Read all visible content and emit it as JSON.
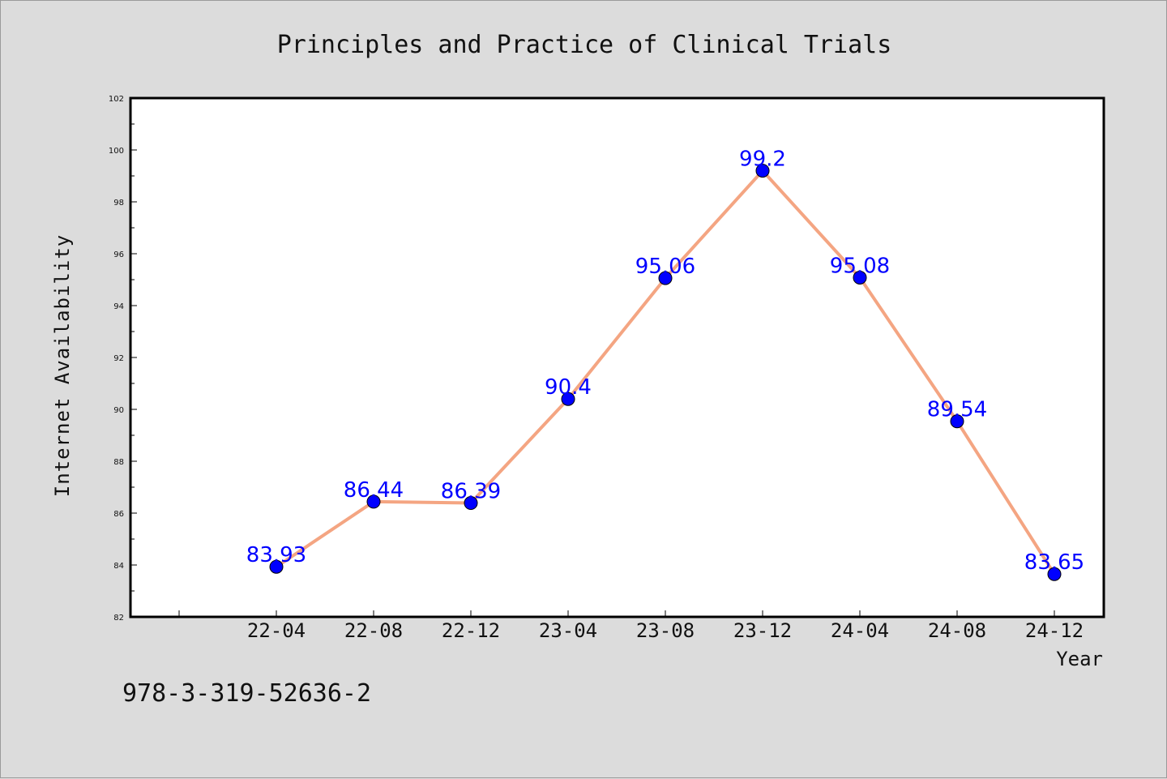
{
  "chart_data": {
    "type": "line",
    "title": "Principles and Practice of Clinical Trials",
    "xlabel": "Year",
    "ylabel": "Internet Availability",
    "categories": [
      "22-04",
      "22-08",
      "22-12",
      "23-04",
      "23-08",
      "23-12",
      "24-04",
      "24-08",
      "24-12"
    ],
    "series": [
      {
        "values": [
          83.93,
          86.44,
          86.39,
          90.4,
          95.06,
          99.2,
          95.08,
          89.54,
          83.65
        ]
      }
    ],
    "data_labels": [
      "83.93",
      "86.44",
      "86.39",
      "90.4",
      "95.06",
      "99.2",
      "95.08",
      "89.54",
      "83.65"
    ],
    "ylim": [
      82,
      102
    ],
    "yticks": [
      82,
      84,
      86,
      88,
      90,
      92,
      94,
      96,
      98,
      100,
      102
    ],
    "grid": false,
    "legend": "none",
    "colors": {
      "line": "#f4a582",
      "marker": "#0000ff",
      "label": "#0000ff",
      "background": "#dcdcdc",
      "plot_background": "#ffffff"
    }
  },
  "annotation": "978-3-319-52636-2"
}
